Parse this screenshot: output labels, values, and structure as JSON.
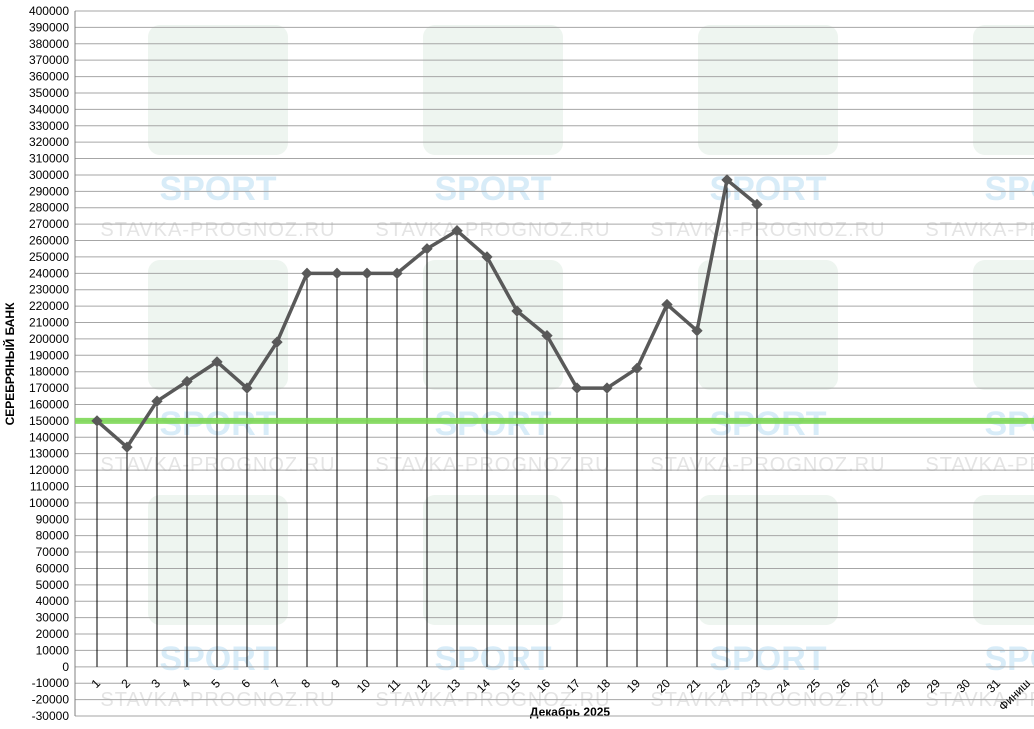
{
  "chart_data": {
    "type": "line",
    "y_label": "СЕРЕБРЯНЫЙ БАНК",
    "x_label": "Декабрь 2025",
    "watermark": [
      "SPORT",
      "STAVKA-PROGNOZ.RU"
    ],
    "categories": [
      "1",
      "2",
      "3",
      "4",
      "5",
      "6",
      "7",
      "8",
      "9",
      "10",
      "11",
      "12",
      "13",
      "14",
      "15",
      "16",
      "17",
      "18",
      "19",
      "20",
      "21",
      "22",
      "23",
      "24",
      "25",
      "26",
      "27",
      "28",
      "29",
      "30",
      "31",
      "Финиш"
    ],
    "series": [
      {
        "color": "#595959",
        "values": [
          150000,
          134000,
          162000,
          174000,
          186000,
          170000,
          198000,
          240000,
          240000,
          240000,
          240000,
          255000,
          266000,
          250000,
          217000,
          202000,
          170000,
          170000,
          182000,
          221000,
          205000,
          297000,
          282000,
          null,
          null,
          null,
          null,
          null,
          null,
          null,
          null,
          null
        ]
      }
    ],
    "reference_line": {
      "value": 150000,
      "color": "#7ed957"
    },
    "ylim": [
      -30000,
      400000
    ],
    "yticks": [
      -30000,
      -20000,
      -10000,
      0,
      10000,
      20000,
      30000,
      40000,
      50000,
      60000,
      70000,
      80000,
      90000,
      100000,
      110000,
      120000,
      130000,
      140000,
      150000,
      160000,
      170000,
      180000,
      190000,
      200000,
      210000,
      220000,
      230000,
      240000,
      250000,
      260000,
      270000,
      280000,
      290000,
      300000,
      310000,
      320000,
      330000,
      340000,
      350000,
      360000,
      370000,
      380000,
      390000,
      400000
    ],
    "grid": true
  }
}
